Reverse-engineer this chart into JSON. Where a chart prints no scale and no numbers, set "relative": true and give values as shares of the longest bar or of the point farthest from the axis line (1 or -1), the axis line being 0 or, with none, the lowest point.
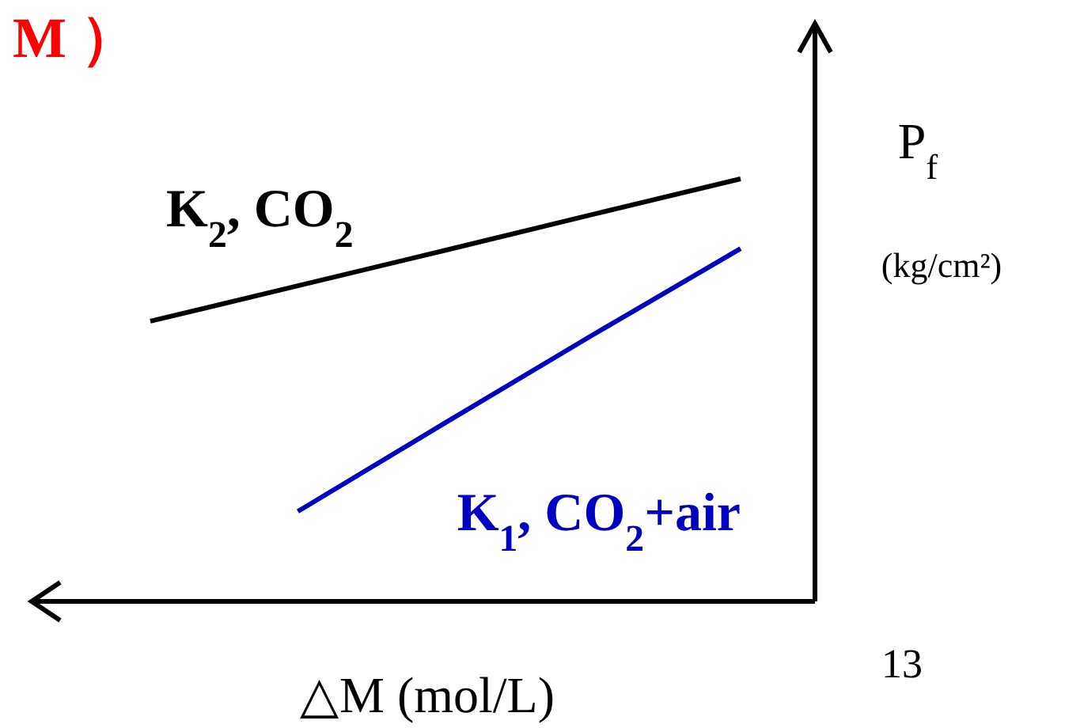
{
  "chart_data": {
    "type": "line",
    "title": "M ）",
    "xlabel": "△M (mol/L)",
    "ylabel": "P$_{f}$ (kg/cm²)",
    "annotations": [
      "13"
    ],
    "relative": true,
    "marker": "none",
    "line_style": "solid",
    "categories": [
      null,
      null,
      null,
      null,
      null
    ],
    "series": [
      {
        "name": "K$_{2}$, CO$_{2}$",
        "color": "#000000",
        "values": [
          0.663,
          0.747,
          0.831,
          0.916,
          1
        ]
      },
      {
        "name": "K$_{1}$, CO$_{2}$+air",
        "color": "#0000c0",
        "values": [
          null,
          0.213,
          0.423,
          0.631,
          0.835
        ]
      }
    ]
  }
}
